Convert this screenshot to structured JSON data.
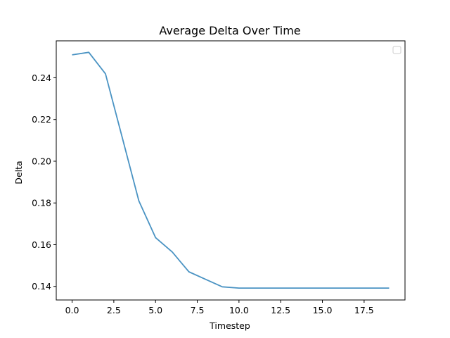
{
  "chart_data": {
    "type": "line",
    "title": "Average Delta Over Time",
    "xlabel": "Timestep",
    "ylabel": "Delta",
    "xlim": [
      -0.95,
      19.95
    ],
    "ylim": [
      0.1335,
      0.2577
    ],
    "xticks": [
      "0.0",
      "2.5",
      "5.0",
      "7.5",
      "10.0",
      "12.5",
      "15.0",
      "17.5"
    ],
    "yticks": [
      "0.14",
      "0.16",
      "0.18",
      "0.20",
      "0.22",
      "0.24"
    ],
    "grid": false,
    "legend": "top-right, empty",
    "series": [
      {
        "color": "#4a93c3",
        "x": [
          0,
          1,
          2,
          3,
          4,
          5,
          6,
          7,
          8,
          9,
          10,
          11,
          12,
          13,
          14,
          15,
          16,
          17,
          18,
          19
        ],
        "y": [
          0.251,
          0.2522,
          0.2419,
          0.2115,
          0.181,
          0.1634,
          0.1565,
          0.147,
          0.1434,
          0.1398,
          0.1392,
          0.1392,
          0.1392,
          0.1392,
          0.1392,
          0.1392,
          0.1392,
          0.1392,
          0.1392,
          0.1392
        ]
      }
    ]
  }
}
